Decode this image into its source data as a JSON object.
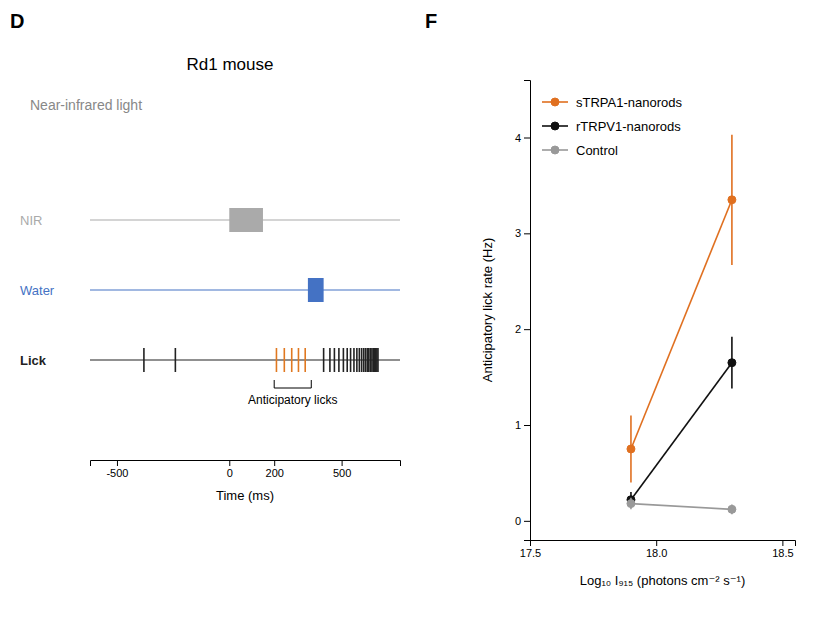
{
  "chart_data": [
    {
      "type": "timeline",
      "title": "Rd1 mouse",
      "subtitle": "Near-infrared light",
      "xlabel": "Time (ms)",
      "xlim": [
        -620,
        760
      ],
      "xticks": [
        -500,
        0,
        200,
        500
      ],
      "annotations": [
        {
          "text": "D"
        },
        {
          "text": "Anticipatory licks",
          "start": 200,
          "end": 365
        }
      ],
      "series": [
        {
          "name": "NIR",
          "color": "#aaaaaa",
          "type": "pulse",
          "values": [
            0
          ],
          "durations": [
            150
          ]
        },
        {
          "name": "Water",
          "color": "#4472c4",
          "type": "pulse",
          "values": [
            350
          ],
          "durations": [
            70
          ]
        },
        {
          "name": "Lick",
          "color": "#222222",
          "type": "events",
          "values": [
            -380,
            -240,
            420,
            448,
            468,
            488,
            508,
            525,
            540,
            555,
            568,
            579,
            589,
            598,
            606,
            614,
            621,
            628,
            635,
            641,
            647,
            652,
            657,
            662
          ]
        },
        {
          "color": "#e07820",
          "type": "events",
          "values": [
            210,
            245,
            278,
            308,
            338
          ]
        }
      ]
    },
    {
      "type": "line",
      "marker": "circle",
      "legend": "upper left",
      "annotations": [
        {
          "text": "F"
        }
      ],
      "xlabel": "Log₁₀ I₉₁₅ (photons cm⁻² s⁻¹)",
      "ylabel": "Anticipatory lick rate (Hz)",
      "xlim": [
        17.5,
        18.55
      ],
      "ylim": [
        -0.2,
        4.6
      ],
      "xticks": [
        17.5,
        {
          "value": 18.0,
          "label": "18.0"
        },
        18.5
      ],
      "yticks": [
        0,
        1,
        2,
        3,
        4
      ],
      "x": [
        17.9,
        18.3
      ],
      "series": [
        {
          "name": "sTRPA1-nanorods",
          "color": "#e07020",
          "values": [
            0.75,
            3.35
          ],
          "errors": [
            0.35,
            0.68
          ]
        },
        {
          "name": "rTRPV1-nanorods",
          "color": "#111111",
          "values": [
            0.22,
            1.65
          ],
          "errors": [
            0.08,
            0.27
          ]
        },
        {
          "name": "Control",
          "color": "#999999",
          "values": [
            0.18,
            0.12
          ],
          "errors": [
            0.06,
            0.05
          ]
        }
      ]
    }
  ]
}
